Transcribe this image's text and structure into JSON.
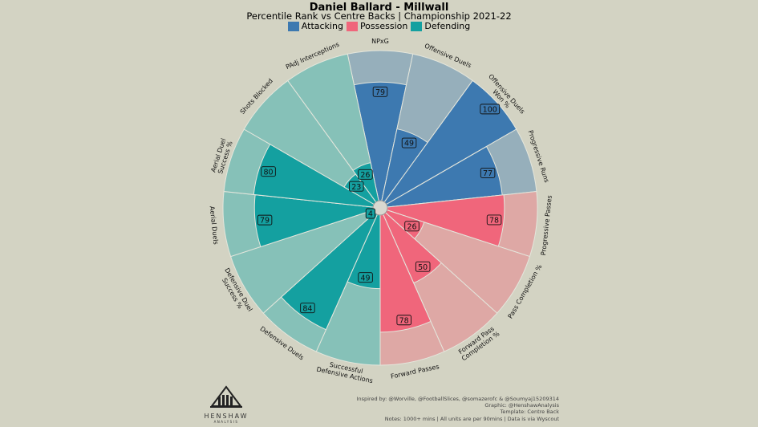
{
  "header": {
    "title": "Daniel Ballard - Millwall",
    "subtitle": "Percentile Rank vs Centre Backs | Championship 2021-22"
  },
  "legend": [
    {
      "label": "Attacking",
      "color": "#3d79b0"
    },
    {
      "label": "Possession",
      "color": "#f0667b"
    },
    {
      "label": "Defending",
      "color": "#14a0a0"
    }
  ],
  "chart_data": {
    "type": "radial-bar",
    "title": "Percentile Rank vs Centre Backs | Championship 2021-22",
    "range": [
      0,
      100
    ],
    "categories": [
      "NPxG",
      "Offensive Duels",
      "Offensive Duels Won %",
      "Progressive Runs",
      "Progressive Passes",
      "Pass Completion %",
      "Forward Pass Completion %",
      "Forward Passes",
      "Successful Defensive Actions",
      "Defensive Duels",
      "Defensive Duel Success %",
      "Aerial Duels",
      "Aerial Duel Success %",
      "Shots Blocked",
      "PAdj Interceptions"
    ],
    "label_lines": [
      [
        "NPxG"
      ],
      [
        "Offensive Duels"
      ],
      [
        "Offensive Duels",
        "Won %"
      ],
      [
        "Progressive Runs"
      ],
      [
        "Progressive Passes"
      ],
      [
        "Pass Completion %"
      ],
      [
        "Forward Pass",
        "Completion %"
      ],
      [
        "Forward Passes"
      ],
      [
        "Successful",
        "Defensive Actions"
      ],
      [
        "Defensive Duels"
      ],
      [
        "Defensive Duel",
        "Success %"
      ],
      [
        "Aerial Duels"
      ],
      [
        "Aerial Duel",
        "Success %"
      ],
      [
        "Shots Blocked"
      ],
      [
        "PAdj Interceptions"
      ]
    ],
    "values": [
      79,
      49,
      100,
      77,
      78,
      26,
      50,
      78,
      49,
      84,
      4,
      79,
      80,
      23,
      26
    ],
    "groups": [
      "Attacking",
      "Attacking",
      "Attacking",
      "Attacking",
      "Possession",
      "Possession",
      "Possession",
      "Possession",
      "Defending",
      "Defending",
      "Defending",
      "Defending",
      "Defending",
      "Defending",
      "Defending"
    ],
    "colors": {
      "Attacking": {
        "bar": "#3d79b0",
        "bg": "#96afbb"
      },
      "Possession": {
        "bar": "#f0667b",
        "bg": "#dea8a5"
      },
      "Defending": {
        "bar": "#14a0a0",
        "bg": "#86c1b8"
      }
    }
  },
  "logo": {
    "name": "HENSHAW",
    "sub": "ANALYSIS"
  },
  "notes": [
    "Inspired by: @Worville, @FootballSlices, @somazerofc & @Soumyaj15209314",
    "Graphic: @HenshawAnalysis",
    "Template: Centre Back",
    "Notes: 1000+ mins | All units are per 90mins | Data is via Wyscout"
  ]
}
